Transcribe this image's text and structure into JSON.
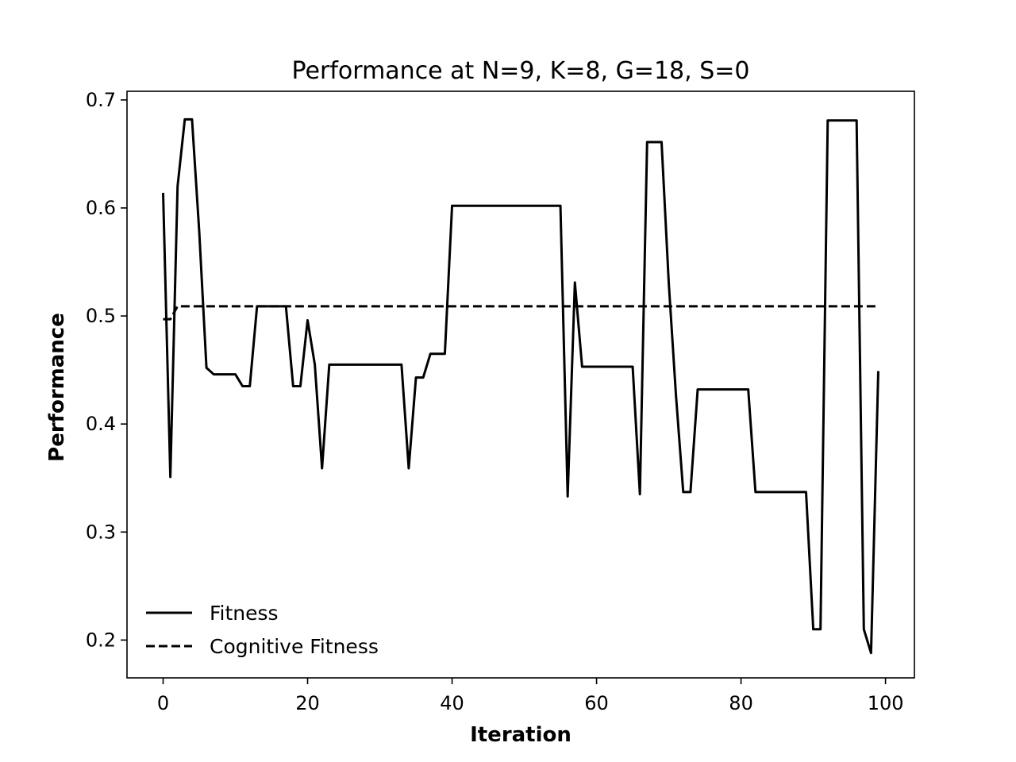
{
  "chart_data": {
    "type": "line",
    "title": "Performance at N=9, K=8, G=18, S=0",
    "xlabel": "Iteration",
    "ylabel": "Performance",
    "xlim": [
      -5,
      104
    ],
    "ylim": [
      0.165,
      0.708
    ],
    "xticks": [
      0,
      20,
      40,
      60,
      80,
      100
    ],
    "yticks": [
      0.2,
      0.3,
      0.4,
      0.5,
      0.6,
      0.7
    ],
    "xtick_labels": [
      "0",
      "20",
      "40",
      "60",
      "80",
      "100"
    ],
    "ytick_labels": [
      "0.2",
      "0.3",
      "0.4",
      "0.5",
      "0.6",
      "0.7"
    ],
    "grid": false,
    "legend_position": "lower-left",
    "series": [
      {
        "name": "Fitness",
        "style": "solid",
        "color": "#000000",
        "x": [
          0,
          1,
          2,
          3,
          4,
          5,
          6,
          7,
          8,
          9,
          10,
          11,
          12,
          13,
          14,
          15,
          16,
          17,
          18,
          19,
          20,
          21,
          22,
          23,
          24,
          25,
          26,
          27,
          28,
          29,
          30,
          31,
          32,
          33,
          34,
          35,
          36,
          37,
          38,
          39,
          40,
          41,
          42,
          43,
          44,
          45,
          46,
          47,
          48,
          49,
          50,
          51,
          52,
          53,
          54,
          55,
          56,
          57,
          58,
          59,
          60,
          61,
          62,
          63,
          64,
          65,
          66,
          67,
          68,
          69,
          70,
          71,
          72,
          73,
          74,
          75,
          76,
          77,
          78,
          79,
          80,
          81,
          82,
          83,
          84,
          85,
          86,
          87,
          88,
          89,
          90,
          91,
          92,
          93,
          94,
          95,
          96,
          97,
          98,
          99
        ],
        "values": [
          0.614,
          0.351,
          0.62,
          0.682,
          0.682,
          0.578,
          0.452,
          0.446,
          0.446,
          0.446,
          0.446,
          0.435,
          0.435,
          0.509,
          0.509,
          0.509,
          0.509,
          0.509,
          0.435,
          0.435,
          0.496,
          0.455,
          0.359,
          0.455,
          0.455,
          0.455,
          0.455,
          0.455,
          0.455,
          0.455,
          0.455,
          0.455,
          0.455,
          0.455,
          0.359,
          0.443,
          0.443,
          0.465,
          0.465,
          0.465,
          0.602,
          0.602,
          0.602,
          0.602,
          0.602,
          0.602,
          0.602,
          0.602,
          0.602,
          0.602,
          0.602,
          0.602,
          0.602,
          0.602,
          0.602,
          0.602,
          0.333,
          0.531,
          0.453,
          0.453,
          0.453,
          0.453,
          0.453,
          0.453,
          0.453,
          0.453,
          0.335,
          0.661,
          0.661,
          0.661,
          0.53,
          0.426,
          0.337,
          0.337,
          0.432,
          0.432,
          0.432,
          0.432,
          0.432,
          0.432,
          0.432,
          0.432,
          0.337,
          0.337,
          0.337,
          0.337,
          0.337,
          0.337,
          0.337,
          0.337,
          0.21,
          0.21,
          0.681,
          0.681,
          0.681,
          0.681,
          0.681,
          0.21,
          0.188,
          0.449
        ]
      },
      {
        "name": "Cognitive Fitness",
        "style": "dashed",
        "color": "#000000",
        "x": [
          0,
          1,
          2,
          99
        ],
        "values": [
          0.497,
          0.497,
          0.509,
          0.509
        ]
      }
    ]
  }
}
